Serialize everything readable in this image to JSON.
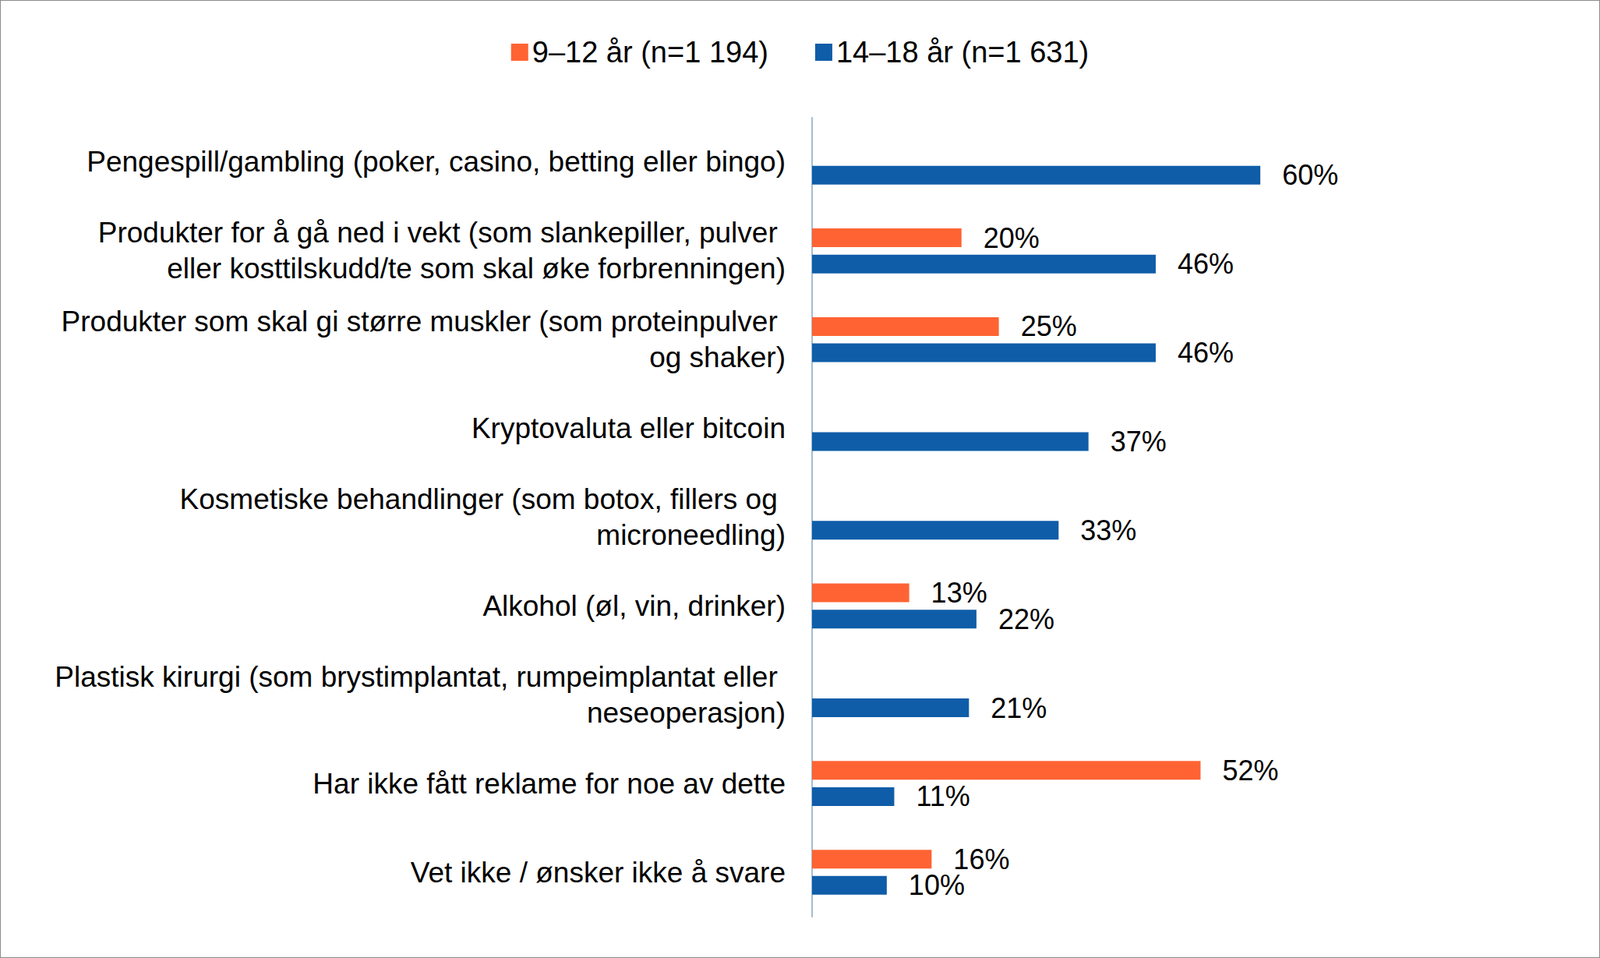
{
  "chart_data": {
    "type": "bar",
    "orientation": "horizontal",
    "categories": [
      "Pengespill/gambling (poker, casino, betting eller bingo)",
      "Produkter for å gå ned i vekt (som slankepiller, pulver eller kosttilskudd/te som skal øke forbrenningen)",
      "Produkter som skal gi større muskler (som proteinpulver og shaker)",
      "Kryptovaluta eller bitcoin",
      "Kosmetiske behandlinger (som botox, fillers og microneedling)",
      "Alkohol (øl, vin, drinker)",
      "Plastisk kirurgi (som brystimplantat, rumpeimplantat eller neseoperasjon)",
      "Har ikke fått reklame for noe av dette",
      "Vet ikke / ønsker ikke å svare"
    ],
    "series": [
      {
        "name": "9–12 år (n=1 194)",
        "color": "#FF6333",
        "values": [
          null,
          20,
          25,
          null,
          null,
          13,
          null,
          52,
          16
        ],
        "value_labels": [
          null,
          "20%",
          "25%",
          null,
          null,
          "13%",
          null,
          "52%",
          "16%"
        ]
      },
      {
        "name": "14–18 år (n=1 631)",
        "color": "#0F5DA8",
        "values": [
          60,
          46,
          46,
          37,
          33,
          22,
          21,
          11,
          10
        ],
        "value_labels": [
          "60%",
          "46%",
          "46%",
          "37%",
          "33%",
          "22%",
          "21%",
          "11%",
          "10%"
        ]
      }
    ],
    "xlim": [
      0,
      70
    ],
    "legend": "top",
    "data_labels": true,
    "tick_labels": "y",
    "grid": false
  }
}
